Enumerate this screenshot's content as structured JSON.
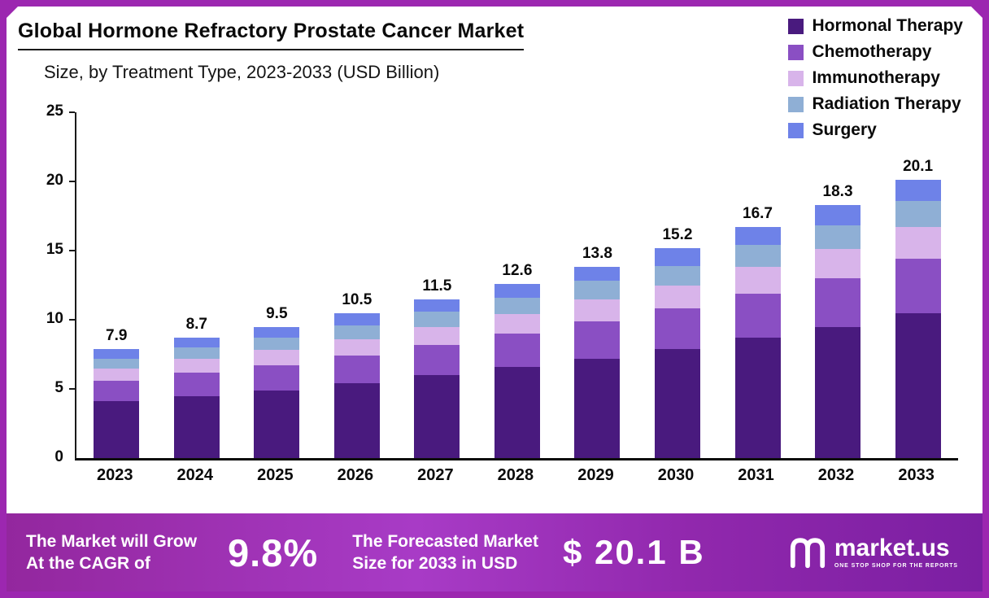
{
  "title": "Global Hormone Refractory Prostate Cancer Market",
  "subtitle": "Size, by Treatment Type, 2023-2033 (USD Billion)",
  "accent_color": "#9C27B0",
  "chart_data": {
    "type": "bar",
    "stacked": true,
    "title": "Global Hormone Refractory Prostate Cancer Market Size, by Treatment Type, 2023-2033 (USD Billion)",
    "categories": [
      "2023",
      "2024",
      "2025",
      "2026",
      "2027",
      "2028",
      "2029",
      "2030",
      "2031",
      "2032",
      "2033"
    ],
    "series": [
      {
        "name": "Hormonal Therapy",
        "color": "#491A7E",
        "values": [
          4.1,
          4.5,
          4.9,
          5.4,
          6.0,
          6.6,
          7.2,
          7.9,
          8.7,
          9.5,
          10.5
        ]
      },
      {
        "name": "Chemotherapy",
        "color": "#8A4FC3",
        "values": [
          1.5,
          1.7,
          1.8,
          2.0,
          2.2,
          2.4,
          2.7,
          2.9,
          3.2,
          3.5,
          3.9
        ]
      },
      {
        "name": "Immunotherapy",
        "color": "#D8B4EA",
        "values": [
          0.9,
          1.0,
          1.1,
          1.2,
          1.3,
          1.4,
          1.6,
          1.7,
          1.9,
          2.1,
          2.3
        ]
      },
      {
        "name": "Radiation Therapy",
        "color": "#8FAFD5",
        "values": [
          0.7,
          0.8,
          0.9,
          1.0,
          1.1,
          1.2,
          1.3,
          1.4,
          1.6,
          1.7,
          1.9
        ]
      },
      {
        "name": "Surgery",
        "color": "#6E82E8",
        "values": [
          0.7,
          0.7,
          0.8,
          0.9,
          0.9,
          1.0,
          1.0,
          1.3,
          1.3,
          1.5,
          1.5
        ]
      }
    ],
    "totals": [
      7.9,
      8.7,
      9.5,
      10.5,
      11.5,
      12.6,
      13.8,
      15.2,
      16.7,
      18.3,
      20.1
    ],
    "xlabel": "",
    "ylabel": "",
    "ylim": [
      0,
      25
    ],
    "yticks": [
      0,
      5,
      10,
      15,
      20,
      25
    ],
    "grid": false,
    "legend_position": "top-right"
  },
  "banner": {
    "cagr_label_line1": "The Market will Grow",
    "cagr_label_line2": "At the CAGR of",
    "cagr_value": "9.8%",
    "forecast_label_line1": "The Forecasted Market",
    "forecast_label_line2": "Size for 2033 in USD",
    "forecast_value": "$ 20.1 B",
    "brand": "market.us",
    "brand_tagline": "One Stop Shop For The Reports"
  }
}
